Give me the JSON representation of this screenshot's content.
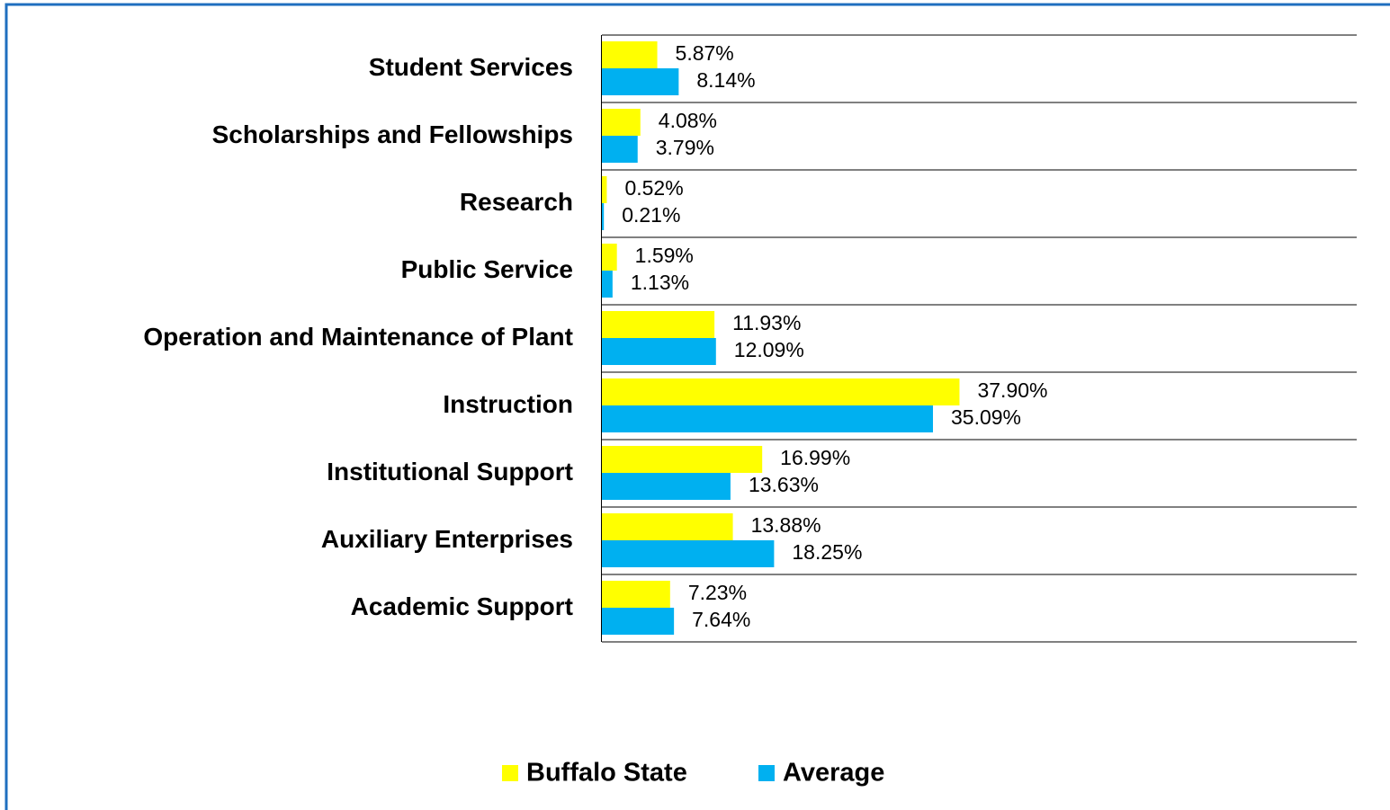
{
  "chart_data": {
    "type": "barh",
    "categories": [
      "Student Services",
      "Scholarships and Fellowships",
      "Research",
      "Public Service",
      "Operation and Maintenance of Plant",
      "Instruction",
      "Institutional Support",
      "Auxiliary Enterprises",
      "Academic Support"
    ],
    "series": [
      {
        "name": "Buffalo State",
        "color": "#ffff00",
        "values": [
          5.87,
          4.08,
          0.52,
          1.59,
          11.93,
          37.9,
          16.99,
          13.88,
          7.23
        ],
        "value_labels": [
          "5.87%",
          "4.08%",
          "0.52%",
          "1.59%",
          "11.93%",
          "37.90%",
          "16.99%",
          "13.88%",
          "7.23%"
        ]
      },
      {
        "name": "Average",
        "color": "#00b0f0",
        "values": [
          8.14,
          3.79,
          0.21,
          1.13,
          12.09,
          35.09,
          13.63,
          18.25,
          7.64
        ],
        "value_labels": [
          "8.14%",
          "3.79%",
          "0.21%",
          "1.13%",
          "12.09%",
          "35.09%",
          "13.63%",
          "18.25%",
          "7.64%"
        ]
      }
    ],
    "xlim": [
      0,
      80
    ],
    "legend": "bottom"
  }
}
